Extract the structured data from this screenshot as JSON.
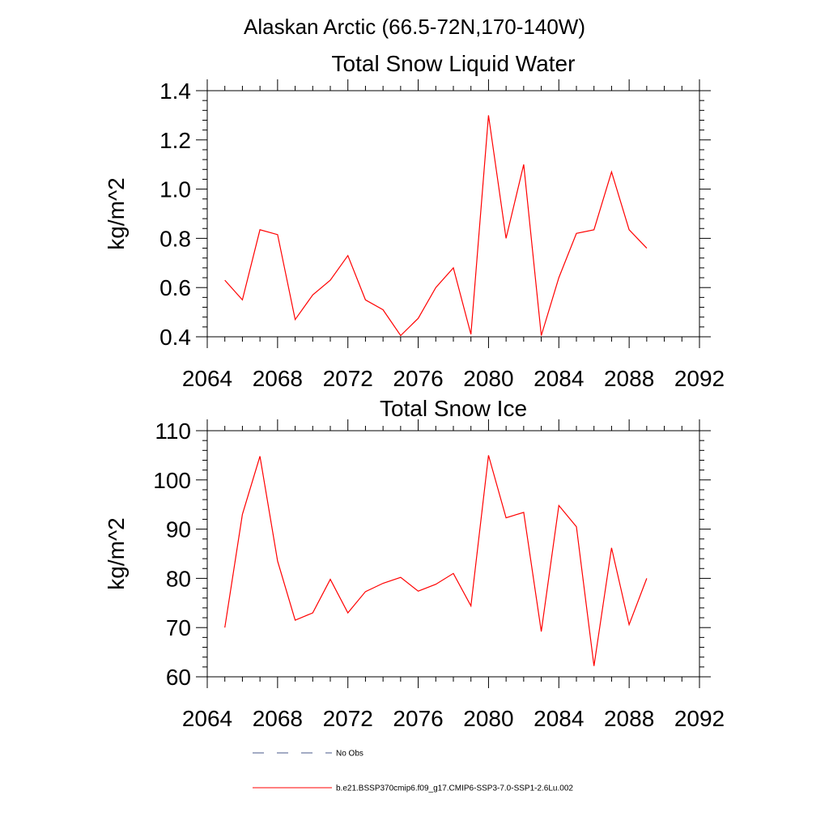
{
  "figure": {
    "suptitle": "Alaskan Arctic (66.5-72N,170-140W)"
  },
  "chart_data": [
    {
      "type": "line",
      "title": "Total Snow Liquid Water",
      "xlabel": "",
      "ylabel": "kg/m^2",
      "xlim": [
        2064,
        2092
      ],
      "ylim": [
        0.4,
        1.4
      ],
      "xticks": [
        2064,
        2068,
        2072,
        2076,
        2080,
        2084,
        2088,
        2092
      ],
      "xtick_labels": [
        "2064",
        "2068",
        "2072",
        "2076",
        "2080",
        "2084",
        "2088",
        "2092"
      ],
      "yticks": [
        0.4,
        0.6,
        0.8,
        1.0,
        1.2,
        1.4
      ],
      "ytick_labels": [
        "0.4",
        "0.6",
        "0.8",
        "1.0",
        "1.2",
        "1.4"
      ],
      "grid": false,
      "series": [
        {
          "name": "b.e21.BSSP370cmip6.f09_g17.CMIP6-SSP3-7.0-SSP1-2.6Lu.002",
          "color": "#ff0000",
          "x": [
            2065,
            2066,
            2067,
            2068,
            2069,
            2070,
            2071,
            2072,
            2073,
            2074,
            2075,
            2076,
            2077,
            2078,
            2079,
            2080,
            2081,
            2082,
            2083,
            2084,
            2085,
            2086,
            2087,
            2088,
            2089
          ],
          "y": [
            0.63,
            0.55,
            0.835,
            0.815,
            0.47,
            0.57,
            0.63,
            0.73,
            0.55,
            0.51,
            0.405,
            0.475,
            0.6,
            0.68,
            0.41,
            1.3,
            0.8,
            1.1,
            0.405,
            0.64,
            0.82,
            0.835,
            1.07,
            0.835,
            0.76
          ]
        }
      ]
    },
    {
      "type": "line",
      "title": "Total Snow Ice",
      "xlabel": "",
      "ylabel": "kg/m^2",
      "xlim": [
        2064,
        2092
      ],
      "ylim": [
        60,
        110
      ],
      "xticks": [
        2064,
        2068,
        2072,
        2076,
        2080,
        2084,
        2088,
        2092
      ],
      "xtick_labels": [
        "2064",
        "2068",
        "2072",
        "2076",
        "2080",
        "2084",
        "2088",
        "2092"
      ],
      "yticks": [
        60,
        70,
        80,
        90,
        100,
        110
      ],
      "ytick_labels": [
        "60",
        "70",
        "80",
        "90",
        "100",
        "110"
      ],
      "grid": false,
      "series": [
        {
          "name": "b.e21.BSSP370cmip6.f09_g17.CMIP6-SSP3-7.0-SSP1-2.6Lu.002",
          "color": "#ff0000",
          "x": [
            2065,
            2066,
            2067,
            2068,
            2069,
            2070,
            2071,
            2072,
            2073,
            2074,
            2075,
            2076,
            2077,
            2078,
            2079,
            2080,
            2081,
            2082,
            2083,
            2084,
            2085,
            2086,
            2087,
            2088,
            2089
          ],
          "y": [
            70,
            93,
            104.8,
            83.5,
            71.5,
            73,
            79.8,
            73,
            77.3,
            79,
            80.2,
            77.4,
            78.8,
            81,
            74.4,
            105,
            92.3,
            93.4,
            69.2,
            94.8,
            90.5,
            62.2,
            86.2,
            70.6,
            80
          ]
        }
      ]
    }
  ],
  "legend": {
    "placement": "bottom-center",
    "items": [
      {
        "label": "No Obs",
        "style": "dashed",
        "color": "#4a5a8a"
      },
      {
        "label": "b.e21.BSSP370cmip6.f09_g17.CMIP6-SSP3-7.0-SSP1-2.6Lu.002",
        "style": "solid",
        "color": "#ff0000"
      }
    ]
  }
}
